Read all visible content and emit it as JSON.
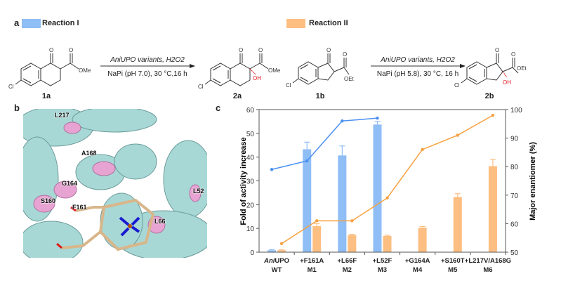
{
  "panels": {
    "a": "a",
    "b": "b",
    "c": "c"
  },
  "legend": [
    {
      "label": "Reaction I",
      "color": "#8fbdf5"
    },
    {
      "label": "Reaction II",
      "color": "#fdbe82"
    }
  ],
  "scheme": {
    "reaction1": {
      "substrate": "1a",
      "product": "2a",
      "conditions_top": "AniUPO variants, H2O2",
      "conditions_bottom": "NaPi (pH 7.0), 30 °C,16 h",
      "ester": "OMe",
      "cl": "Cl",
      "oh": "OH",
      "o": "O"
    },
    "reaction2": {
      "substrate": "1b",
      "product": "2b",
      "conditions_top": "AniUPO variants, H2O2",
      "conditions_bottom": "NaPi (pH 5.8), 30 °C, 16 h",
      "ester": "OEt",
      "cl": "Cl",
      "oh": "OH",
      "o": "O"
    },
    "oh_color": "#e0101a"
  },
  "structure": {
    "residues": [
      "L217",
      "A168",
      "G164",
      "S160",
      "F161",
      "L66",
      "L52"
    ],
    "colors": {
      "ribbon": "#a8d8d6",
      "mutation": "#e7a3d1",
      "heme": "#d8b68a",
      "nitrogen": "#1a1ad0",
      "iron": "#b05010"
    }
  },
  "chart_data": {
    "type": "bar",
    "categories": [
      [
        "AniUPO",
        "WT"
      ],
      [
        "+F161A",
        "M1"
      ],
      [
        "+L66F",
        "M2"
      ],
      [
        "+L52F",
        "M3"
      ],
      [
        "+G164A",
        "M4"
      ],
      [
        "+S160T",
        "M5"
      ],
      [
        "+L217V/A168G",
        "M6"
      ]
    ],
    "ylabel": "Fold of activity increase",
    "ylabel_right": "Major enantiomer (%)",
    "ylim": [
      0,
      60
    ],
    "ylim_right": [
      50,
      100
    ],
    "yticks": [
      0,
      10,
      20,
      30,
      40,
      50,
      60
    ],
    "yticks_right": [
      50,
      60,
      70,
      80,
      90,
      100
    ],
    "bar_series": [
      {
        "name": "Reaction I",
        "color": "#8fbdf5",
        "values": [
          0.8,
          43.3,
          40.7,
          53.7,
          null,
          null,
          null
        ],
        "error": [
          0.3,
          3.0,
          4.0,
          1.3,
          null,
          null,
          null
        ]
      },
      {
        "name": "Reaction II",
        "color": "#fdbe82",
        "values": [
          0.8,
          11.0,
          7.2,
          6.8,
          10.3,
          23.2,
          36.2
        ],
        "error": [
          0.2,
          1.0,
          0.3,
          0.3,
          0.5,
          1.4,
          2.8
        ]
      }
    ],
    "line_series": [
      {
        "name": "Reaction I",
        "axis": "right",
        "color": "#4a90f0",
        "values": [
          79,
          82,
          96,
          97,
          null,
          null,
          null
        ]
      },
      {
        "name": "Reaction II",
        "axis": "right",
        "color": "#f7a040",
        "values": [
          53,
          61,
          61,
          69,
          86,
          91,
          98
        ]
      }
    ],
    "grid": false
  }
}
